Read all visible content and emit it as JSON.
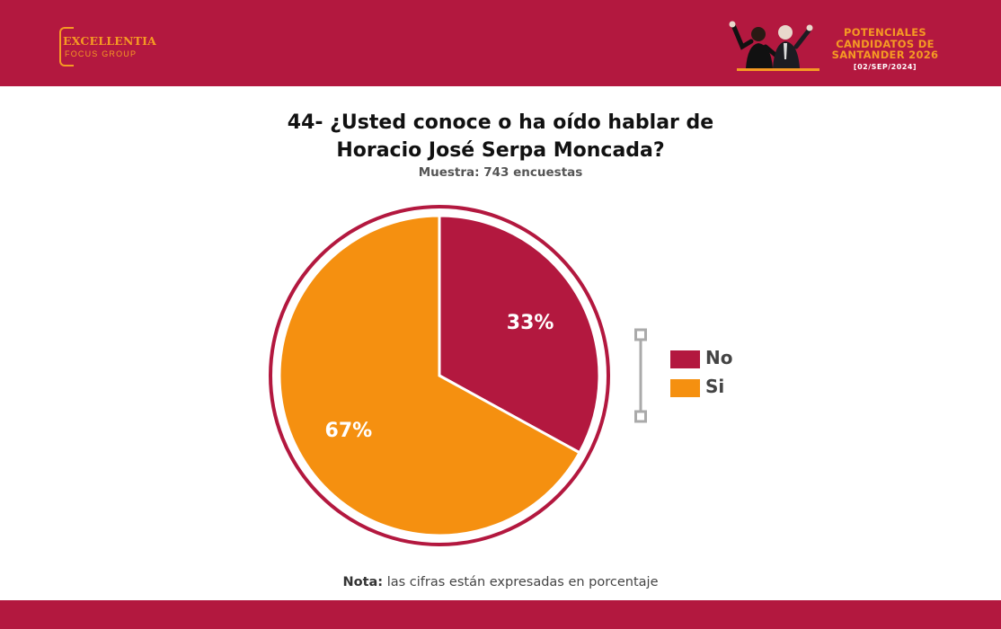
{
  "header": {
    "logo": {
      "main": "EXCELLENTIA",
      "sub": "FOCUS GROUP"
    },
    "campaign": {
      "lines": [
        "POTENCIALES",
        "CANDIDATOS DE",
        "SANTANDER 2026"
      ],
      "date": "[02/SEP/2024]"
    },
    "colors": {
      "brand": "#b3183f",
      "accent": "#f59a23"
    }
  },
  "chart_data": {
    "type": "pie",
    "title_lines": [
      "44- ¿Usted conoce o ha oído hablar de",
      "Horacio José Serpa Moncada?"
    ],
    "subtitle": "Muestra: 743 encuestas",
    "slices": [
      {
        "label": "No",
        "value": 33,
        "display": "33%",
        "color": "#b3183f"
      },
      {
        "label": "Si",
        "value": 67,
        "display": "67%",
        "color": "#f59010"
      }
    ],
    "legend_position": "right"
  },
  "note": {
    "bold": "Nota:",
    "text": " las cifras están expresadas en porcentaje"
  }
}
